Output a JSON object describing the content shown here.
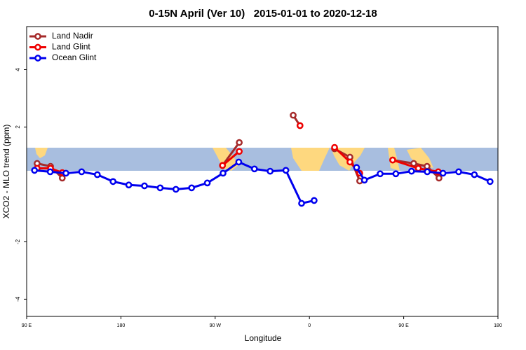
{
  "chart_data": {
    "type": "line",
    "title": "0-15N April (Ver 10)   2015-01-01 to 2020-12-18",
    "x_label": "Longitude",
    "y_label": "XCO2 - MLO trend (ppm)",
    "xlim": [
      90,
      540
    ],
    "ylim": [
      -4.6,
      5.5
    ],
    "xticks": [
      {
        "value": 90,
        "label": "90 E"
      },
      {
        "value": 180,
        "label": "180"
      },
      {
        "value": 270,
        "label": "90 W"
      },
      {
        "value": 360,
        "label": "0"
      },
      {
        "value": 450,
        "label": "90 E"
      },
      {
        "value": 540,
        "label": "180"
      }
    ],
    "yticks": [
      -4,
      -2,
      2,
      4
    ],
    "legend": "top-left",
    "series": [
      {
        "name": "Land Nadir",
        "color": "#a52a2a",
        "x": [
          100,
          112.8,
          124,
          200,
          277,
          293,
          320,
          344.5,
          351,
          370,
          384,
          398.7,
          408,
          420,
          439.5,
          459.6,
          472.3,
          483.7
        ],
        "values": [
          0.73,
          0.63,
          0.22,
          null,
          0.66,
          1.46,
          null,
          2.41,
          2.05,
          null,
          1.24,
          0.95,
          0.12,
          null,
          0.85,
          0.73,
          0.63,
          0.22
        ]
      },
      {
        "name": "Land Glint",
        "color": "#ee0000",
        "x": [
          100,
          112.8,
          124,
          200,
          277,
          293,
          320,
          351,
          370,
          384,
          398.7,
          408,
          420,
          439.5,
          464,
          483
        ],
        "values": [
          0.56,
          0.56,
          0.41,
          null,
          0.66,
          1.15,
          null,
          2.05,
          null,
          1.29,
          0.78,
          0.39,
          null,
          0.85,
          0.56,
          0.44
        ]
      },
      {
        "name": "Ocean Glint",
        "color": "#0000ee",
        "x": [
          97.5,
          112.5,
          127.5,
          142.5,
          157.5,
          172.5,
          187.5,
          202.5,
          217.5,
          232.5,
          247.5,
          262.5,
          277.5,
          292.5,
          307.5,
          322.5,
          337.5,
          352.5,
          364.5,
          390,
          405,
          412.5,
          427.5,
          442.5,
          457.5,
          472.5,
          487.5,
          502.5,
          517.5,
          532.5
        ],
        "values": [
          0.49,
          0.44,
          0.39,
          0.44,
          0.34,
          0.1,
          -0.02,
          -0.05,
          -0.12,
          -0.17,
          -0.12,
          0.05,
          0.39,
          0.78,
          0.54,
          0.46,
          0.49,
          -0.66,
          -0.56,
          null,
          0.59,
          0.15,
          0.37,
          0.37,
          0.46,
          0.44,
          0.39,
          0.44,
          0.34,
          0.1
        ]
      }
    ]
  }
}
